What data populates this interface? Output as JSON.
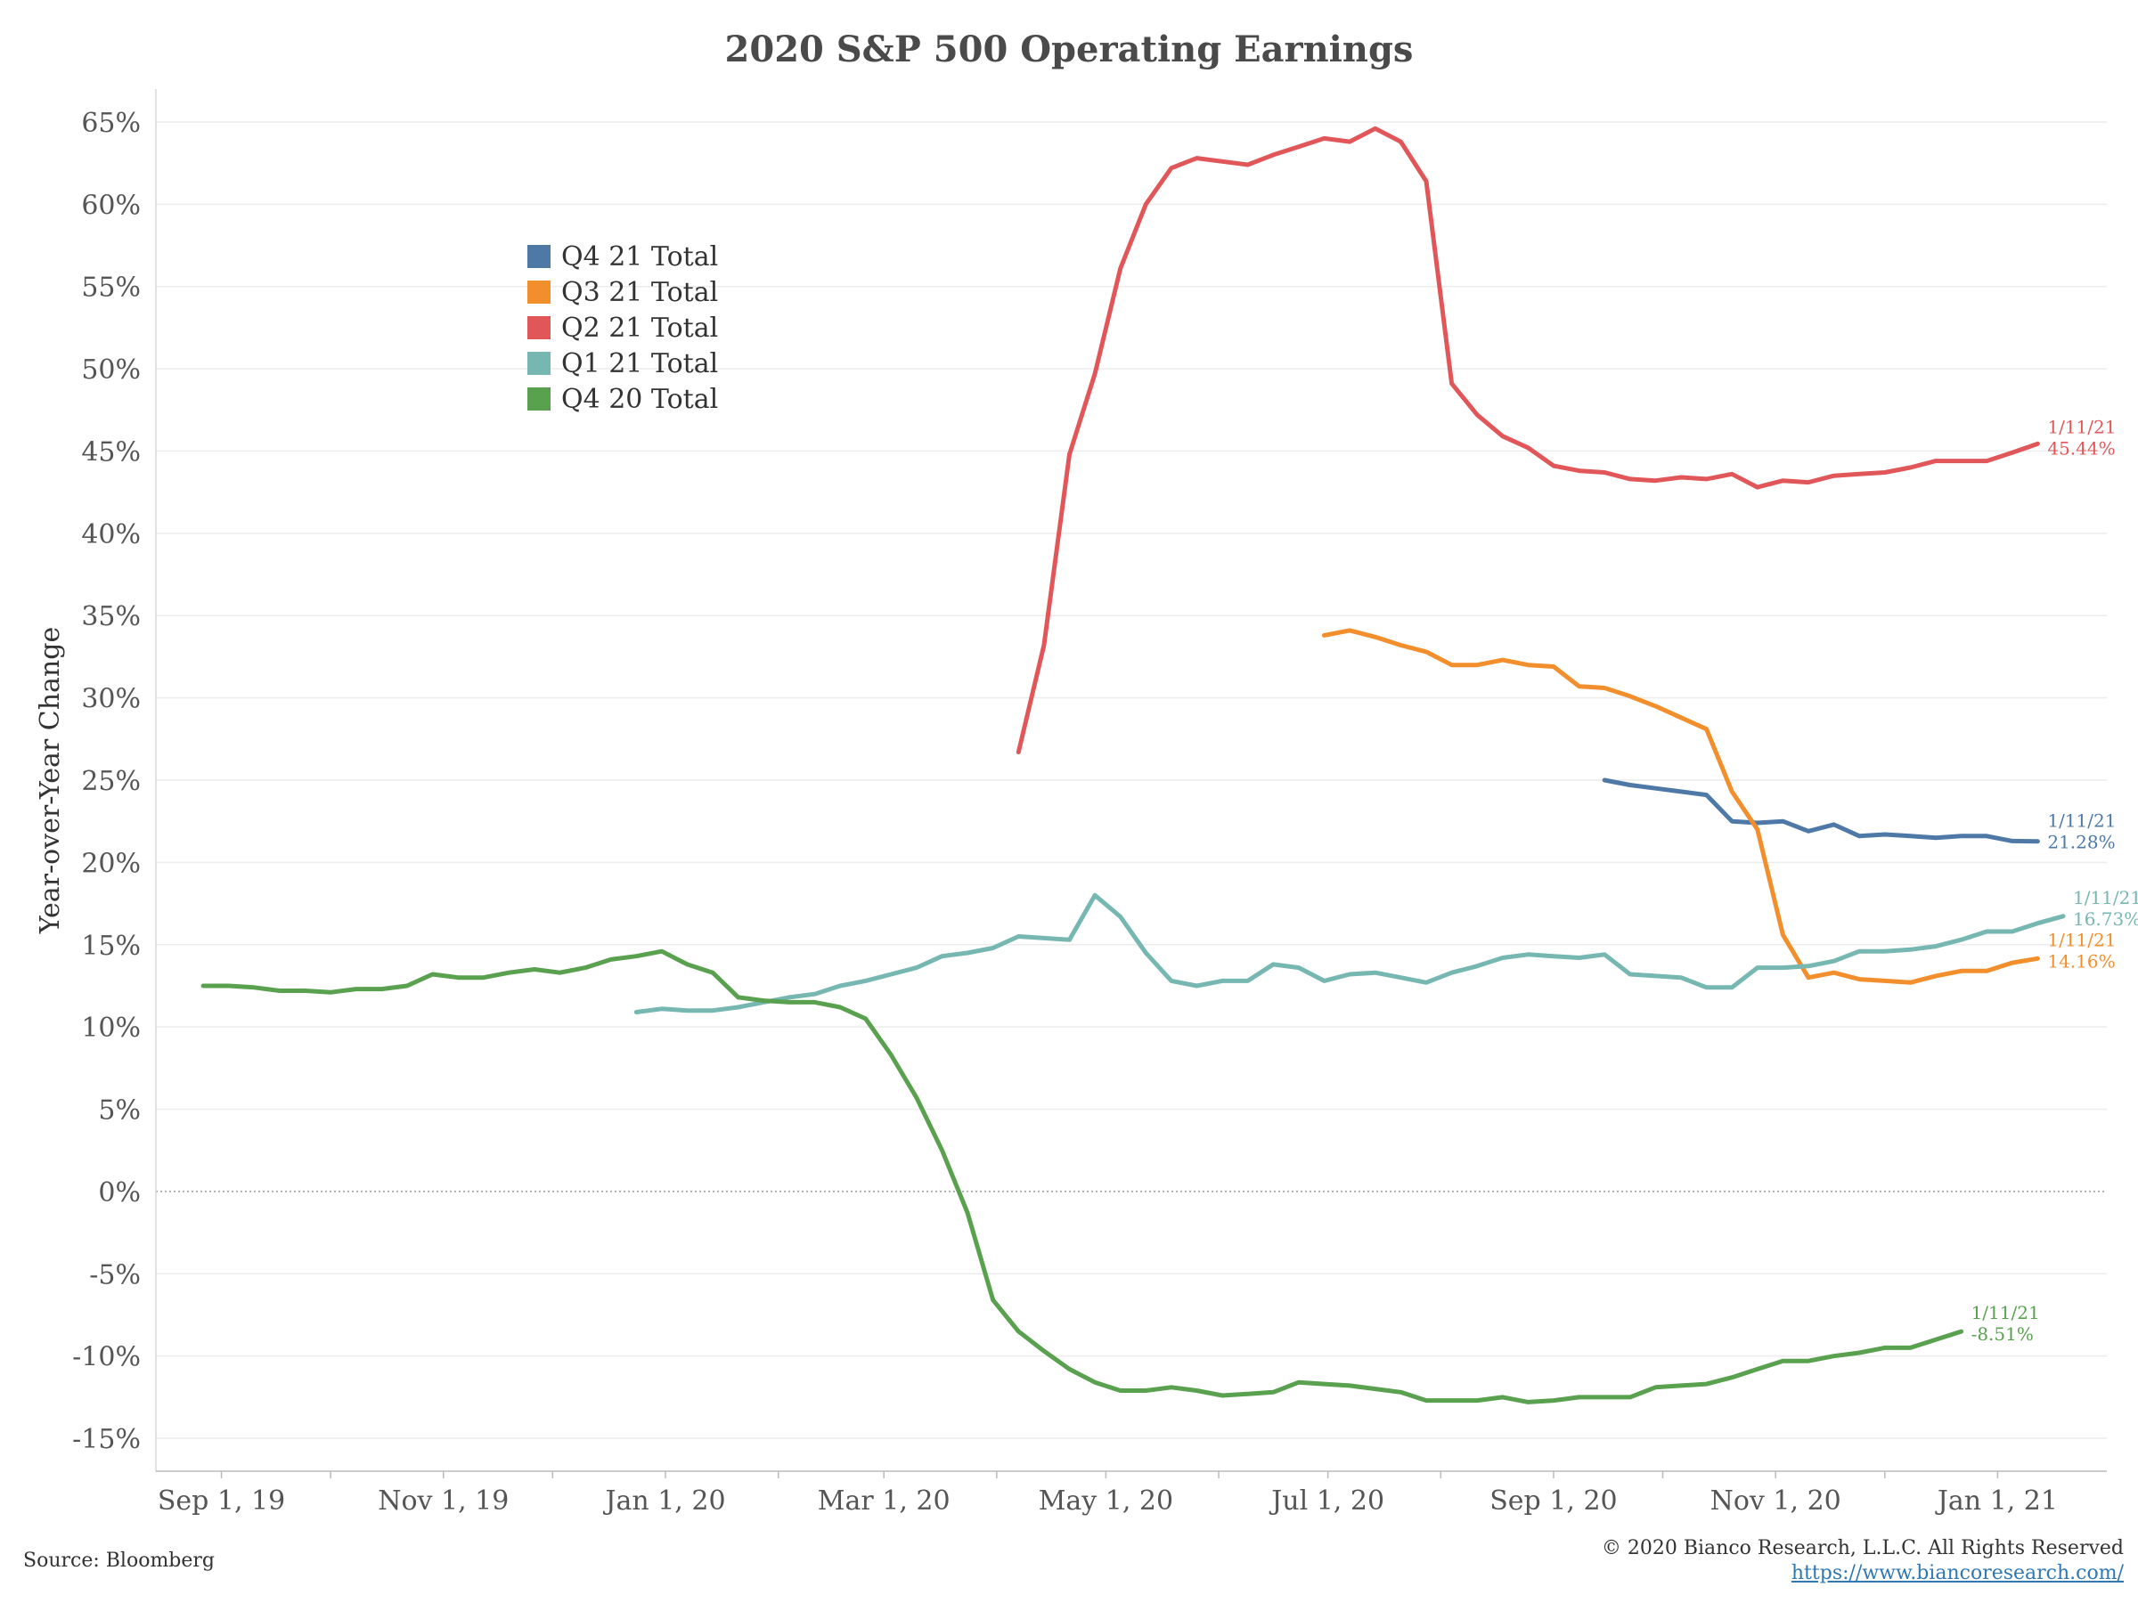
{
  "title": "2020 S&P 500 Operating Earnings",
  "source": "Source: Bloomberg",
  "copyright": "© 2020 Bianco Research, L.L.C. All Rights Reserved",
  "link": "https://www.biancoresearch.com/",
  "chart_data": {
    "type": "line",
    "title": "2020 S&P 500 Operating Earnings",
    "ylabel": "Year-over-Year Change",
    "xlabel": "",
    "x_domain": [
      "2019-08-14",
      "2021-01-31"
    ],
    "ylim": [
      -17,
      67
    ],
    "yticks": [
      -15,
      -10,
      -5,
      0,
      5,
      10,
      15,
      20,
      25,
      30,
      35,
      40,
      45,
      50,
      55,
      60,
      65
    ],
    "ytick_labels": [
      "-15%",
      "-10%",
      "-5%",
      "0%",
      "5%",
      "10%",
      "15%",
      "20%",
      "25%",
      "30%",
      "35%",
      "40%",
      "45%",
      "50%",
      "55%",
      "60%",
      "65%"
    ],
    "xticks": [
      {
        "date": "2019-09-01",
        "label": "Sep 1, 19"
      },
      {
        "date": "2019-11-01",
        "label": "Nov 1, 19"
      },
      {
        "date": "2020-01-01",
        "label": "Jan 1, 20"
      },
      {
        "date": "2020-03-01",
        "label": "Mar 1, 20"
      },
      {
        "date": "2020-05-01",
        "label": "May 1, 20"
      },
      {
        "date": "2020-07-01",
        "label": "Jul 1, 20"
      },
      {
        "date": "2020-09-01",
        "label": "Sep 1, 20"
      },
      {
        "date": "2020-11-01",
        "label": "Nov 1, 20"
      },
      {
        "date": "2021-01-01",
        "label": "Jan 1, 21"
      }
    ],
    "grid": true,
    "zero_line": "dotted",
    "legend_position": "upper-left",
    "series": [
      {
        "name": "Q4 21 Total",
        "color": "#4e79a7",
        "start": "2020-09-15",
        "step_days": 7,
        "values": [
          25.0,
          24.7,
          24.5,
          24.3,
          24.1,
          22.5,
          22.4,
          22.5,
          21.9,
          22.3,
          21.6,
          21.7,
          21.6,
          21.5,
          21.6,
          21.6,
          21.3,
          21.28
        ],
        "end_label_date": "1/11/21",
        "end_label_value": "21.28%"
      },
      {
        "name": "Q3 21 Total",
        "color": "#f28e2b",
        "start": "2020-06-30",
        "step_days": 7,
        "values": [
          33.8,
          34.1,
          33.7,
          33.2,
          32.8,
          32.0,
          32.0,
          32.3,
          32.0,
          31.9,
          30.7,
          30.6,
          30.1,
          29.5,
          28.8,
          28.1,
          24.3,
          22.0,
          15.6,
          13.0,
          13.3,
          12.9,
          12.8,
          12.7,
          13.1,
          13.4,
          13.4,
          13.9,
          14.16
        ],
        "end_label_date": "1/11/21",
        "end_label_value": "14.16%"
      },
      {
        "name": "Q2 21 Total",
        "color": "#e15759",
        "start": "2020-04-07",
        "step_days": 7,
        "values": [
          26.7,
          33.2,
          44.8,
          49.7,
          56.1,
          60.0,
          62.2,
          62.8,
          62.6,
          62.4,
          63.0,
          63.5,
          64.0,
          63.8,
          64.6,
          63.8,
          61.4,
          49.1,
          47.2,
          45.9,
          45.2,
          44.1,
          43.8,
          43.7,
          43.3,
          43.2,
          43.4,
          43.3,
          43.6,
          42.8,
          43.2,
          43.1,
          43.5,
          43.6,
          43.7,
          44.0,
          44.4,
          44.4,
          44.4,
          44.9,
          45.44
        ],
        "end_label_date": "1/11/21",
        "end_label_value": "45.44%"
      },
      {
        "name": "Q1 21 Total",
        "color": "#76b7b2",
        "start": "2019-12-24",
        "step_days": 7,
        "values": [
          10.9,
          11.1,
          11.0,
          11.0,
          11.2,
          11.5,
          11.8,
          12.0,
          12.5,
          12.8,
          13.2,
          13.6,
          14.3,
          14.5,
          14.8,
          15.5,
          15.4,
          15.3,
          18.0,
          16.7,
          14.5,
          12.8,
          12.5,
          12.8,
          12.8,
          13.8,
          13.6,
          12.8,
          13.2,
          13.3,
          13.0,
          12.7,
          13.3,
          13.7,
          14.2,
          14.4,
          14.3,
          14.2,
          14.4,
          13.2,
          13.1,
          13.0,
          12.4,
          12.4,
          13.6,
          13.6,
          13.7,
          14.0,
          14.6,
          14.6,
          14.7,
          14.9,
          15.3,
          15.8,
          15.8,
          16.3,
          16.73
        ],
        "end_label_date": "1/11/21",
        "end_label_value": "16.73%"
      },
      {
        "name": "Q4 20 Total",
        "color": "#59a14f",
        "start": "2019-08-27",
        "step_days": 7,
        "values": [
          12.5,
          12.5,
          12.4,
          12.2,
          12.2,
          12.1,
          12.3,
          12.3,
          12.5,
          13.2,
          13.0,
          13.0,
          13.3,
          13.5,
          13.3,
          13.6,
          14.1,
          14.3,
          14.6,
          13.8,
          13.3,
          11.8,
          11.6,
          11.5,
          11.5,
          11.2,
          10.5,
          8.3,
          5.7,
          2.5,
          -1.3,
          -6.6,
          -8.5,
          -9.7,
          -10.8,
          -11.6,
          -12.1,
          -12.1,
          -11.9,
          -12.1,
          -12.4,
          -12.3,
          -12.2,
          -11.6,
          -11.7,
          -11.8,
          -12.0,
          -12.2,
          -12.7,
          -12.7,
          -12.7,
          -12.5,
          -12.8,
          -12.7,
          -12.5,
          -12.5,
          -12.5,
          -11.9,
          -11.8,
          -11.7,
          -11.3,
          -10.8,
          -10.3,
          -10.3,
          -10.0,
          -9.8,
          -9.5,
          -9.5,
          -9.0,
          -8.51
        ],
        "end_label_date": "1/11/21",
        "end_label_value": "-8.51%"
      }
    ]
  }
}
